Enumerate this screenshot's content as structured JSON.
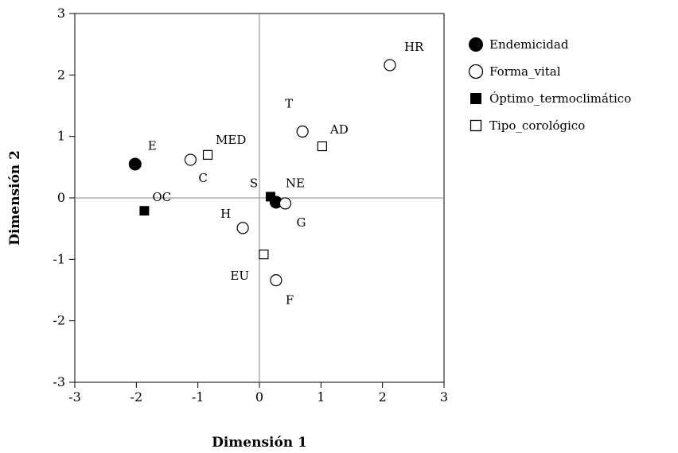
{
  "chart_data": {
    "type": "scatter",
    "title": "",
    "xlabel": "Dimensión 1",
    "ylabel": "Dimensión 2",
    "xlim": [
      -3,
      3
    ],
    "ylim": [
      -3,
      3
    ],
    "xticks": [
      "-3",
      "-2",
      "-1",
      "0",
      "1",
      "2",
      "3"
    ],
    "yticks": [
      "3",
      "2",
      "1",
      "0",
      "-1",
      "-2",
      "-3"
    ],
    "reference_lines": {
      "x": 0,
      "y": 0
    },
    "legend": {
      "position": "right-top"
    },
    "series": [
      {
        "name": "Endemicidad",
        "marker": "filled-circle",
        "points": [
          {
            "label": "E",
            "x": -2.02,
            "y": 0.55
          },
          {
            "label": "NE",
            "x": 0.27,
            "y": -0.07
          }
        ]
      },
      {
        "name": "Forma_vital",
        "marker": "open-circle",
        "points": [
          {
            "label": "HR",
            "x": 2.12,
            "y": 2.16
          },
          {
            "label": "T",
            "x": 0.7,
            "y": 1.08
          },
          {
            "label": "C",
            "x": -1.12,
            "y": 0.62
          },
          {
            "label": "G",
            "x": 0.42,
            "y": -0.09
          },
          {
            "label": "H",
            "x": -0.27,
            "y": -0.49
          },
          {
            "label": "F",
            "x": 0.27,
            "y": -1.34
          }
        ]
      },
      {
        "name": "Óptimo_termoclimático",
        "marker": "filled-square",
        "points": [
          {
            "label": "OC",
            "x": -1.87,
            "y": -0.21
          },
          {
            "label": "S",
            "x": 0.18,
            "y": 0.02
          }
        ]
      },
      {
        "name": "Tipo_corológico",
        "marker": "open-square",
        "points": [
          {
            "label": "MED",
            "x": -0.84,
            "y": 0.7
          },
          {
            "label": "AD",
            "x": 1.02,
            "y": 0.84
          },
          {
            "label": "EU",
            "x": 0.07,
            "y": -0.92
          }
        ]
      }
    ]
  }
}
